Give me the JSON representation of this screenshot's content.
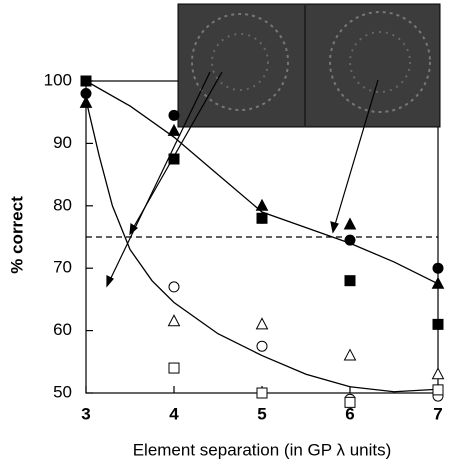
{
  "chart_data": {
    "type": "scatter",
    "xlabel": "Element separation (in GP λ units)",
    "ylabel": "% correct",
    "xlim": [
      3,
      7
    ],
    "ylim": [
      50,
      100
    ],
    "xticks": [
      3,
      4,
      5,
      6,
      7
    ],
    "yticks": [
      50,
      60,
      70,
      80,
      90,
      100
    ],
    "reference_line": 75,
    "series": [
      {
        "shape": "circle",
        "filled": true,
        "color": "#000000",
        "x": [
          3,
          4,
          5,
          6,
          7
        ],
        "values": [
          98,
          94.5,
          78,
          74.5,
          70
        ]
      },
      {
        "shape": "triangle",
        "filled": true,
        "color": "#000000",
        "x": [
          3,
          4,
          5,
          6,
          7
        ],
        "values": [
          96.5,
          92,
          80,
          77,
          67.5
        ]
      },
      {
        "shape": "square",
        "filled": true,
        "color": "#000000",
        "x": [
          3,
          4,
          5,
          6,
          7
        ],
        "values": [
          100,
          87.5,
          78,
          68,
          61
        ]
      },
      {
        "shape": "circle",
        "filled": false,
        "color": "#000000",
        "x": [
          4,
          5,
          6,
          7
        ],
        "values": [
          67,
          57.5,
          49,
          49.5
        ]
      },
      {
        "shape": "triangle",
        "filled": false,
        "color": "#000000",
        "x": [
          4,
          5,
          6,
          7
        ],
        "values": [
          61.5,
          61,
          56,
          53
        ]
      },
      {
        "shape": "square",
        "filled": false,
        "color": "#000000",
        "x": [
          4,
          5,
          6,
          7
        ],
        "values": [
          54,
          50,
          48.5,
          50.5
        ]
      }
    ],
    "curves": [
      {
        "color": "#000000",
        "x": [
          3,
          3.5,
          4,
          4.5,
          5,
          5.5,
          6,
          6.5,
          7
        ],
        "values": [
          100,
          96,
          91,
          85,
          79,
          76.5,
          74,
          71,
          67.5
        ]
      },
      {
        "color": "#000000",
        "x": [
          3,
          3.15,
          3.3,
          3.5,
          3.75,
          4,
          4.5,
          5,
          5.5,
          6,
          6.5,
          7
        ],
        "values": [
          97,
          88,
          80,
          73,
          68,
          64.5,
          59.5,
          56,
          53,
          51,
          50.2,
          50.6
        ]
      }
    ]
  }
}
